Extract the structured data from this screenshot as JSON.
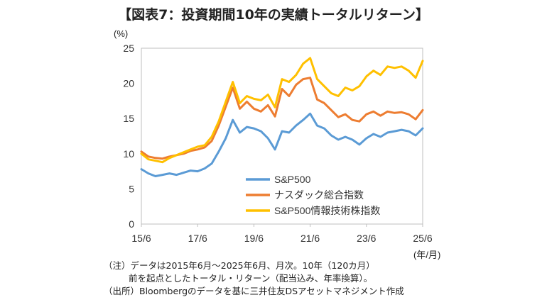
{
  "header": {
    "title": "【図表7：投資期間10年の実績トータルリターン】"
  },
  "chart_data": {
    "type": "line",
    "title": "【図表7：投資期間10年の実績トータルリターン】",
    "y_unit": "(%)",
    "x_unit": "(年/月)",
    "ylim": [
      0,
      25
    ],
    "y_ticks": [
      "0",
      "5",
      "10",
      "15",
      "20",
      "25"
    ],
    "x_ticks": [
      "15/6",
      "17/6",
      "19/6",
      "21/6",
      "23/6",
      "25/6"
    ],
    "grid": false,
    "legend_position": "bottom-left-inside",
    "x": [
      "15/6",
      "15/9",
      "15/12",
      "16/3",
      "16/6",
      "16/9",
      "16/12",
      "17/3",
      "17/6",
      "17/9",
      "17/12",
      "18/3",
      "18/6",
      "18/9",
      "18/12",
      "19/3",
      "19/6",
      "19/9",
      "19/12",
      "20/3",
      "20/6",
      "20/9",
      "20/12",
      "21/3",
      "21/6",
      "21/9",
      "21/12",
      "22/3",
      "22/6",
      "22/9",
      "22/12",
      "23/3",
      "23/6",
      "23/9",
      "23/12",
      "24/3",
      "24/6",
      "24/9",
      "24/12",
      "25/3",
      "25/6"
    ],
    "series": [
      {
        "name": "S&P500",
        "color": "#5b9bd5",
        "values": [
          7.8,
          7.2,
          6.8,
          7.0,
          7.2,
          7.0,
          7.3,
          7.6,
          7.5,
          7.9,
          8.6,
          10.3,
          12.2,
          14.8,
          13.0,
          13.8,
          13.6,
          13.2,
          12.2,
          10.6,
          13.2,
          13.0,
          14.0,
          14.8,
          15.7,
          14.0,
          13.6,
          12.6,
          12.0,
          12.4,
          12.0,
          11.3,
          12.2,
          12.8,
          12.4,
          13.0,
          13.2,
          13.4,
          13.2,
          12.6,
          13.6
        ]
      },
      {
        "name": "ナスダック総合指数",
        "color": "#ed7d31",
        "values": [
          10.3,
          9.6,
          9.4,
          9.3,
          9.6,
          9.8,
          10.0,
          10.4,
          10.6,
          10.9,
          11.8,
          14.0,
          16.7,
          19.4,
          16.4,
          17.4,
          16.4,
          16.0,
          16.9,
          15.3,
          19.2,
          18.2,
          19.8,
          20.6,
          20.8,
          17.7,
          17.2,
          16.2,
          15.2,
          15.6,
          14.8,
          14.6,
          15.6,
          16.0,
          15.4,
          16.0,
          15.8,
          15.9,
          15.6,
          14.9,
          16.2
        ]
      },
      {
        "name": "S&P500情報技術株指数",
        "color": "#ffc000",
        "values": [
          10.0,
          9.2,
          9.0,
          8.8,
          9.4,
          9.8,
          10.2,
          10.6,
          11.0,
          11.2,
          12.4,
          14.6,
          17.4,
          20.2,
          17.2,
          18.2,
          17.8,
          17.6,
          18.4,
          16.6,
          20.6,
          20.2,
          21.2,
          22.8,
          23.6,
          20.6,
          19.6,
          18.6,
          18.2,
          19.4,
          19.0,
          19.6,
          21.0,
          21.8,
          21.2,
          22.4,
          22.2,
          22.4,
          21.8,
          20.8,
          23.2
        ]
      }
    ]
  },
  "notes": [
    "（注）データは2015年6月～2025年6月、月次。10年（120カ月）",
    "前を起点としたトータル・リターン（配当込み、年率換算）。",
    "（出所）Bloombergのデータを基に三井住友DSアセットマネジメント作成"
  ]
}
